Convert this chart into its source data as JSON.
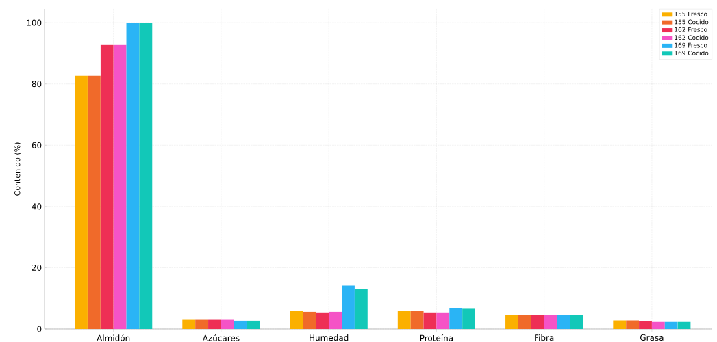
{
  "chart_data": {
    "type": "bar",
    "ylabel": "Contenido (%)",
    "categories": [
      "Almidón",
      "Azúcares",
      "Humedad",
      "Proteína",
      "Fibra",
      "Grasa"
    ],
    "series": [
      {
        "name": "155 Fresco",
        "color": "#fbb000",
        "values": [
          82.7,
          3.0,
          5.8,
          5.8,
          4.5,
          2.8
        ]
      },
      {
        "name": "155 Cocido",
        "color": "#f06a2a",
        "values": [
          82.7,
          3.0,
          5.6,
          5.8,
          4.5,
          2.8
        ]
      },
      {
        "name": "162 Fresco",
        "color": "#ee2f55",
        "values": [
          92.7,
          3.0,
          5.4,
          5.4,
          4.6,
          2.6
        ]
      },
      {
        "name": "162 Cocido",
        "color": "#f553c6",
        "values": [
          92.7,
          3.0,
          5.6,
          5.4,
          4.6,
          2.3
        ]
      },
      {
        "name": "169 Fresco",
        "color": "#2ab4f5",
        "values": [
          99.8,
          2.7,
          14.2,
          6.8,
          4.5,
          2.3
        ]
      },
      {
        "name": "169 Cocido",
        "color": "#12c8b8",
        "values": [
          99.8,
          2.7,
          13.0,
          6.6,
          4.5,
          2.3
        ]
      }
    ],
    "ylim": [
      0,
      104.5
    ],
    "yticks": [
      0,
      20,
      40,
      60,
      80,
      100
    ],
    "grid": true,
    "legend": "top right"
  }
}
